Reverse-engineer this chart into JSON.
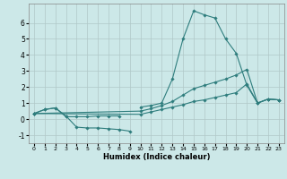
{
  "title": "",
  "xlabel": "Humidex (Indice chaleur)",
  "ylabel": "",
  "bg_color": "#cce8e8",
  "grid_color": "#b0c8c8",
  "line_color": "#2e7d7d",
  "line_width": 0.8,
  "marker": "D",
  "marker_size": 1.8,
  "xlim": [
    -0.5,
    23.5
  ],
  "ylim": [
    -1.5,
    7.2
  ],
  "xticks": [
    0,
    1,
    2,
    3,
    4,
    5,
    6,
    7,
    8,
    9,
    10,
    11,
    12,
    13,
    14,
    15,
    16,
    17,
    18,
    19,
    20,
    21,
    22,
    23
  ],
  "yticks": [
    -1,
    0,
    1,
    2,
    3,
    4,
    5,
    6
  ],
  "series": [
    {
      "x": [
        0,
        1,
        2,
        3,
        4,
        5,
        6,
        7,
        8,
        9,
        10,
        11,
        12,
        13,
        14,
        15,
        16,
        17,
        18,
        19,
        20,
        21,
        22,
        23
      ],
      "y": [
        0.35,
        0.6,
        0.7,
        0.15,
        0.15,
        0.15,
        0.2,
        0.2,
        0.2,
        null,
        0.75,
        0.85,
        1.0,
        2.5,
        5.0,
        6.75,
        6.5,
        6.3,
        5.0,
        4.1,
        2.1,
        1.0,
        1.25,
        1.2
      ]
    },
    {
      "x": [
        0,
        1,
        2,
        3,
        4,
        5,
        6,
        7,
        8,
        9
      ],
      "y": [
        0.35,
        0.6,
        0.7,
        0.2,
        -0.5,
        -0.55,
        -0.55,
        -0.6,
        -0.65,
        -0.75
      ]
    },
    {
      "x": [
        0,
        10,
        11,
        12,
        13,
        14,
        15,
        16,
        17,
        18,
        19,
        20,
        21,
        22,
        23
      ],
      "y": [
        0.35,
        0.5,
        0.65,
        0.85,
        1.1,
        1.5,
        1.9,
        2.1,
        2.3,
        2.5,
        2.75,
        3.1,
        1.0,
        1.25,
        1.2
      ]
    },
    {
      "x": [
        0,
        10,
        11,
        12,
        13,
        14,
        15,
        16,
        17,
        18,
        19,
        20,
        21,
        22,
        23
      ],
      "y": [
        0.35,
        0.3,
        0.45,
        0.6,
        0.75,
        0.9,
        1.1,
        1.2,
        1.35,
        1.5,
        1.65,
        2.2,
        1.0,
        1.25,
        1.2
      ]
    }
  ]
}
